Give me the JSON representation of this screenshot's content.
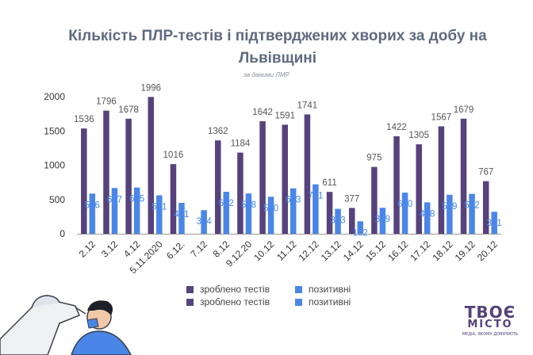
{
  "chart_data": {
    "type": "bar",
    "title": "Кількість ПЛР-тестів і підтверджених хворих за добу на Львівщині",
    "subtitle": "за даними ЛМР",
    "categories": [
      "2.12",
      "3.12",
      "4.12",
      "5.11.2020",
      "6.12.",
      "7.12",
      "8.12",
      "9.12.20",
      "10.12",
      "11.12",
      "12.12",
      "13.12",
      "14.12",
      "15.12",
      "16.12",
      "17.12",
      "18.12",
      "19.12",
      "20.12"
    ],
    "series": [
      {
        "name": "зроблено тестів",
        "color": "#56427c",
        "values": [
          1536,
          1796,
          1678,
          1996,
          1016,
          null,
          1362,
          1184,
          1642,
          1591,
          1741,
          611,
          377,
          975,
          1422,
          1305,
          1567,
          1679,
          767
        ]
      },
      {
        "name": "позитивні",
        "color": "#4a86e8",
        "values": [
          586,
          667,
          675,
          561,
          451,
          344,
          612,
          588,
          540,
          663,
          721,
          363,
          182,
          379,
          600,
          458,
          569,
          582,
          321
        ]
      }
    ],
    "ylim": [
      0,
      2000
    ],
    "yticks": [
      0,
      500,
      1000,
      1500,
      2000
    ],
    "xlabel": "",
    "ylabel": "",
    "grid": false
  },
  "legend": {
    "rows": [
      [
        {
          "label": "зроблено тестів",
          "color": "#56427c"
        },
        {
          "label": "позитивні",
          "color": "#4a86e8"
        }
      ],
      [
        {
          "label": "зроблено тестів",
          "color": "#56427c"
        },
        {
          "label": "позитивні",
          "color": "#4a86e8"
        }
      ]
    ]
  },
  "logo": {
    "line1": "ТВОЄ",
    "line2": "МІСТО",
    "tagline": "МЕДІА, ЯКОМУ ДОВІРЯЮТЬ"
  }
}
